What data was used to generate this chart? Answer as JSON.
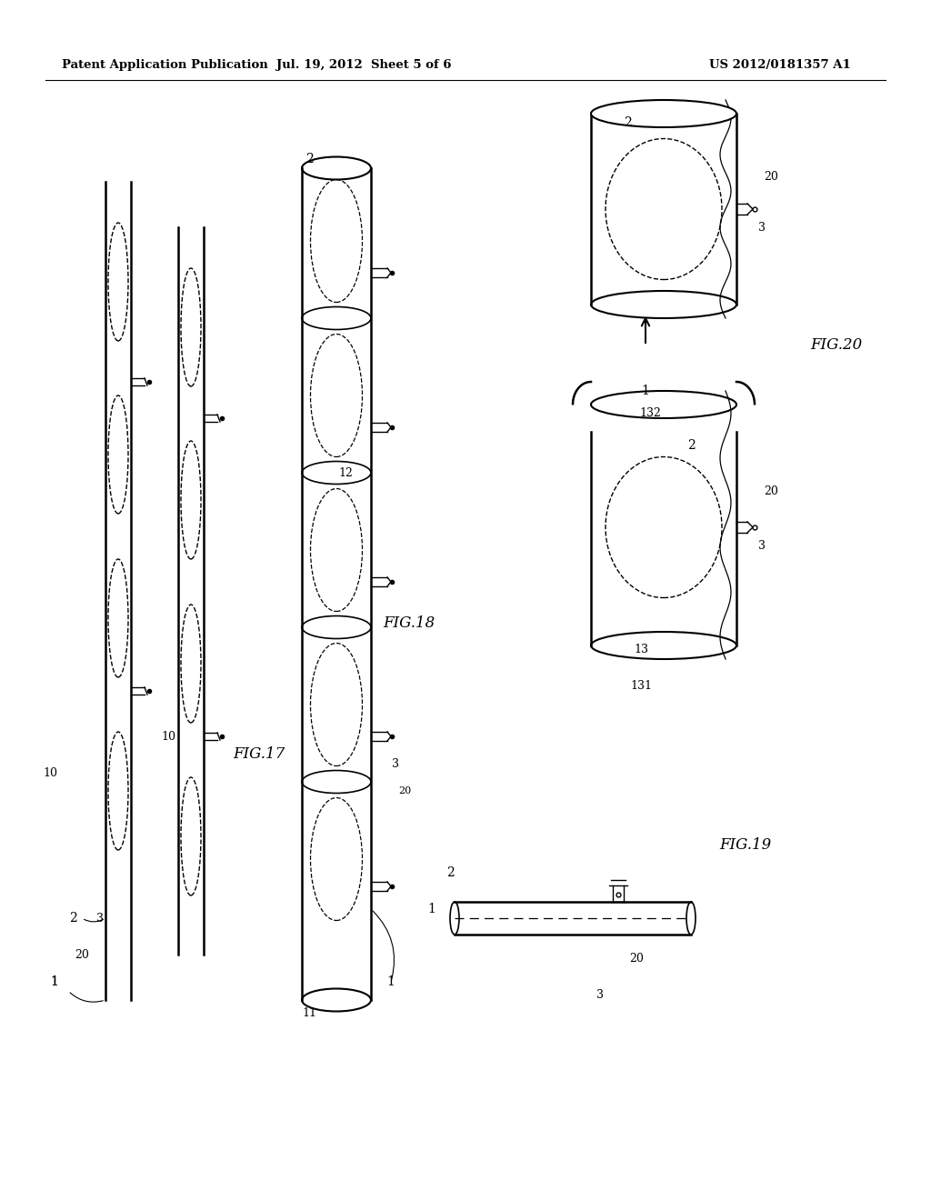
{
  "header_left": "Patent Application Publication",
  "header_mid": "Jul. 19, 2012  Sheet 5 of 6",
  "header_right": "US 2012/0181357 A1",
  "background_color": "#ffffff",
  "line_color": "#000000",
  "fig17_label": "FIG.17",
  "fig18_label": "FIG.18",
  "fig19_label": "FIG.19",
  "fig20_label": "FIG.20"
}
